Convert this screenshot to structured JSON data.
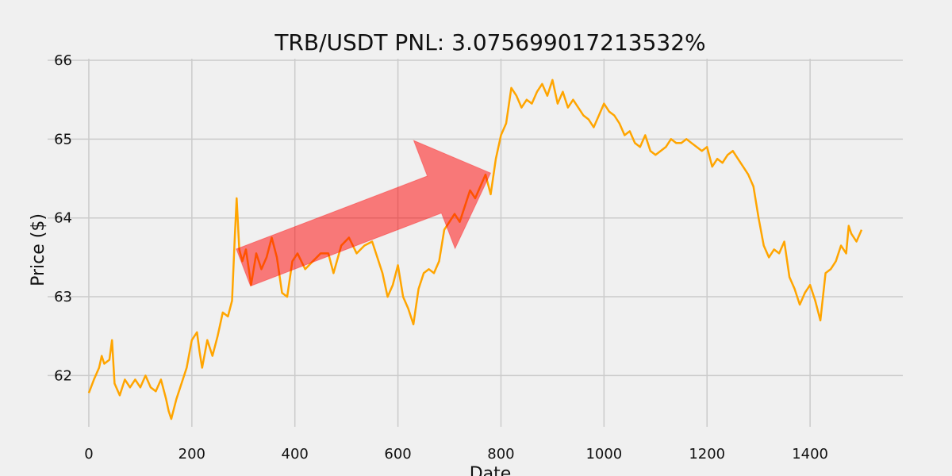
{
  "chart_data": {
    "type": "line",
    "title": "TRB/USDT  PNL: 3.075699017213532%",
    "xlabel": "Date",
    "ylabel": "Price ($)",
    "xlim": [
      -80,
      1580
    ],
    "ylim": [
      61.35,
      66.02
    ],
    "grid": true,
    "x_ticks": [
      0,
      200,
      400,
      600,
      800,
      1000,
      1200,
      1400
    ],
    "y_ticks": [
      62,
      63,
      64,
      65,
      66
    ],
    "series": [
      {
        "color": "#ffa500",
        "points": [
          [
            0,
            61.78
          ],
          [
            10,
            61.95
          ],
          [
            20,
            62.1
          ],
          [
            25,
            62.25
          ],
          [
            30,
            62.15
          ],
          [
            40,
            62.2
          ],
          [
            45,
            62.45
          ],
          [
            50,
            61.9
          ],
          [
            60,
            61.75
          ],
          [
            70,
            61.95
          ],
          [
            80,
            61.85
          ],
          [
            90,
            61.95
          ],
          [
            100,
            61.85
          ],
          [
            110,
            62.0
          ],
          [
            120,
            61.85
          ],
          [
            130,
            61.8
          ],
          [
            140,
            61.95
          ],
          [
            150,
            61.7
          ],
          [
            155,
            61.55
          ],
          [
            160,
            61.45
          ],
          [
            170,
            61.7
          ],
          [
            180,
            61.9
          ],
          [
            190,
            62.1
          ],
          [
            200,
            62.45
          ],
          [
            210,
            62.55
          ],
          [
            215,
            62.3
          ],
          [
            220,
            62.1
          ],
          [
            230,
            62.45
          ],
          [
            240,
            62.25
          ],
          [
            250,
            62.5
          ],
          [
            260,
            62.8
          ],
          [
            270,
            62.75
          ],
          [
            278,
            62.95
          ],
          [
            283,
            63.7
          ],
          [
            287,
            64.25
          ],
          [
            292,
            63.6
          ],
          [
            298,
            63.45
          ],
          [
            305,
            63.6
          ],
          [
            315,
            63.15
          ],
          [
            325,
            63.55
          ],
          [
            335,
            63.35
          ],
          [
            345,
            63.5
          ],
          [
            355,
            63.75
          ],
          [
            365,
            63.5
          ],
          [
            375,
            63.05
          ],
          [
            385,
            63.0
          ],
          [
            395,
            63.45
          ],
          [
            405,
            63.55
          ],
          [
            420,
            63.35
          ],
          [
            435,
            63.45
          ],
          [
            450,
            63.55
          ],
          [
            465,
            63.55
          ],
          [
            475,
            63.3
          ],
          [
            490,
            63.65
          ],
          [
            505,
            63.75
          ],
          [
            520,
            63.55
          ],
          [
            535,
            63.65
          ],
          [
            550,
            63.7
          ],
          [
            560,
            63.5
          ],
          [
            570,
            63.3
          ],
          [
            580,
            63.0
          ],
          [
            590,
            63.15
          ],
          [
            600,
            63.4
          ],
          [
            610,
            63.0
          ],
          [
            620,
            62.85
          ],
          [
            630,
            62.65
          ],
          [
            640,
            63.1
          ],
          [
            650,
            63.3
          ],
          [
            660,
            63.35
          ],
          [
            670,
            63.3
          ],
          [
            680,
            63.45
          ],
          [
            690,
            63.85
          ],
          [
            700,
            63.95
          ],
          [
            710,
            64.05
          ],
          [
            720,
            63.95
          ],
          [
            730,
            64.15
          ],
          [
            740,
            64.35
          ],
          [
            750,
            64.25
          ],
          [
            760,
            64.4
          ],
          [
            770,
            64.55
          ],
          [
            780,
            64.3
          ],
          [
            790,
            64.75
          ],
          [
            800,
            65.05
          ],
          [
            810,
            65.2
          ],
          [
            820,
            65.65
          ],
          [
            830,
            65.55
          ],
          [
            840,
            65.4
          ],
          [
            850,
            65.5
          ],
          [
            860,
            65.45
          ],
          [
            870,
            65.6
          ],
          [
            880,
            65.7
          ],
          [
            890,
            65.55
          ],
          [
            900,
            65.75
          ],
          [
            910,
            65.45
          ],
          [
            920,
            65.6
          ],
          [
            930,
            65.4
          ],
          [
            940,
            65.5
          ],
          [
            950,
            65.4
          ],
          [
            960,
            65.3
          ],
          [
            970,
            65.25
          ],
          [
            980,
            65.15
          ],
          [
            990,
            65.3
          ],
          [
            1000,
            65.45
          ],
          [
            1010,
            65.35
          ],
          [
            1020,
            65.3
          ],
          [
            1030,
            65.2
          ],
          [
            1040,
            65.05
          ],
          [
            1050,
            65.1
          ],
          [
            1060,
            64.95
          ],
          [
            1070,
            64.9
          ],
          [
            1080,
            65.05
          ],
          [
            1090,
            64.85
          ],
          [
            1100,
            64.8
          ],
          [
            1110,
            64.85
          ],
          [
            1120,
            64.9
          ],
          [
            1130,
            65.0
          ],
          [
            1140,
            64.95
          ],
          [
            1150,
            64.95
          ],
          [
            1160,
            65.0
          ],
          [
            1170,
            64.95
          ],
          [
            1180,
            64.9
          ],
          [
            1190,
            64.85
          ],
          [
            1200,
            64.9
          ],
          [
            1210,
            64.65
          ],
          [
            1220,
            64.75
          ],
          [
            1230,
            64.7
          ],
          [
            1240,
            64.8
          ],
          [
            1250,
            64.85
          ],
          [
            1260,
            64.75
          ],
          [
            1270,
            64.65
          ],
          [
            1280,
            64.55
          ],
          [
            1290,
            64.4
          ],
          [
            1300,
            64.0
          ],
          [
            1310,
            63.65
          ],
          [
            1320,
            63.5
          ],
          [
            1330,
            63.6
          ],
          [
            1340,
            63.55
          ],
          [
            1350,
            63.7
          ],
          [
            1360,
            63.25
          ],
          [
            1370,
            63.1
          ],
          [
            1380,
            62.9
          ],
          [
            1390,
            63.05
          ],
          [
            1400,
            63.15
          ],
          [
            1410,
            62.95
          ],
          [
            1420,
            62.7
          ],
          [
            1430,
            63.3
          ],
          [
            1440,
            63.35
          ],
          [
            1450,
            63.45
          ],
          [
            1460,
            63.65
          ],
          [
            1470,
            63.55
          ],
          [
            1475,
            63.9
          ],
          [
            1480,
            63.8
          ],
          [
            1490,
            63.7
          ],
          [
            1500,
            63.85
          ]
        ]
      }
    ],
    "annotations": [
      {
        "type": "arrow",
        "color": "#ff0000",
        "opacity": 0.5,
        "from": [
          300,
          63.37
        ],
        "to": [
          780,
          64.57
        ]
      }
    ]
  }
}
